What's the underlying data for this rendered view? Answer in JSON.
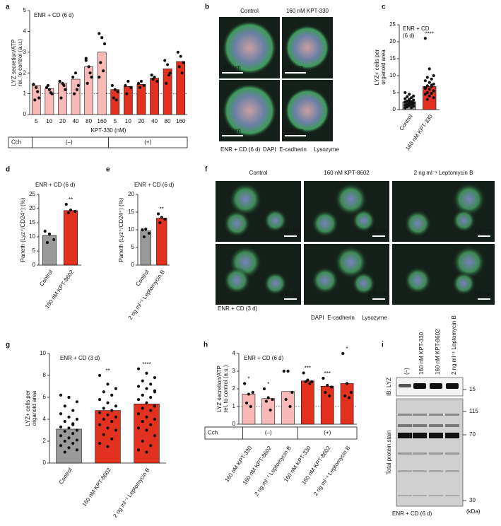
{
  "chart_data": [
    {
      "panel": "a",
      "type": "bar",
      "title": "ENR + CD (6 d)",
      "y_label": [
        "LYZ secretion/ATP",
        "rel. to control (a.u.)"
      ],
      "categories": [
        "5",
        "10",
        "20",
        "40",
        "80",
        "160",
        "5",
        "10",
        "20",
        "40",
        "80",
        "160"
      ],
      "values": [
        1.4,
        1.25,
        1.5,
        1.7,
        2.3,
        3.0,
        1.2,
        1.35,
        1.45,
        1.75,
        2.2,
        2.55
      ],
      "colors": [
        "#f8b9b7",
        "#f8b9b7",
        "#f8b9b7",
        "#f8b9b7",
        "#f8b9b7",
        "#f8b9b7",
        "#e2321f",
        "#e2321f",
        "#e2321f",
        "#e2321f",
        "#e2321f",
        "#e2321f"
      ],
      "points": [
        [
          1.45,
          1.3,
          0.8,
          0.7,
          1.1,
          1.45
        ],
        [
          1.3,
          1.2,
          1.0,
          1.4,
          1.05
        ],
        [
          1.6,
          1.5,
          1.2,
          0.8,
          1.4
        ],
        [
          1.8,
          2.0,
          1.4,
          1.0,
          1.2
        ],
        [
          2.6,
          2.3,
          1.8,
          1.5,
          2.0,
          2.7
        ],
        [
          3.9,
          3.7,
          3.4,
          2.5,
          2.1,
          1.8
        ],
        [
          1.4,
          1.2,
          1.1,
          0.8,
          0.7
        ],
        [
          1.4,
          1.6,
          1.3,
          1.0
        ],
        [
          1.5,
          1.6,
          1.4,
          1.3
        ],
        [
          1.9,
          1.8,
          1.6,
          1.7
        ],
        [
          2.6,
          2.4,
          2.0,
          1.5,
          1.9
        ],
        [
          3.0,
          2.8,
          2.5,
          2.3,
          2.0
        ]
      ],
      "x_label": "KPT-330 (nM)",
      "ylim": [
        0,
        5
      ],
      "yticks": [
        0,
        1,
        2,
        3,
        4,
        5
      ],
      "reference_line": 1,
      "cch_label": "Cch",
      "groups": [
        "(–)",
        "(+)"
      ]
    },
    {
      "panel": "c",
      "type": "bar",
      "title": "ENR + CD",
      "subtitle": "(6 d)",
      "y_label": [
        "LYZ+ cells per",
        "organoid area"
      ],
      "categories": [
        "Control",
        "160 nM KPT-330"
      ],
      "values": [
        2.3,
        6.8
      ],
      "colors": [
        "#9a9a9a",
        "#e2321f"
      ],
      "points": [
        [
          5,
          4.5,
          4,
          3.8,
          3.5,
          3.2,
          3,
          2.8,
          2.5,
          2.3,
          2.2,
          2,
          1.8,
          1.6,
          1.5,
          1.3,
          1.2,
          1,
          0.8,
          0.6,
          0.5,
          2.7,
          1.9
        ],
        [
          21,
          12,
          10,
          9.5,
          9,
          8.5,
          8,
          7.5,
          7,
          6.8,
          6.5,
          6,
          5.5,
          5,
          4.8,
          4.5,
          4,
          3.5,
          3,
          7.2,
          6.2
        ]
      ],
      "annotations": [
        null,
        "****"
      ],
      "ylim": [
        0,
        25
      ],
      "yticks": [
        0,
        5,
        10,
        15,
        20,
        25
      ]
    },
    {
      "panel": "d",
      "type": "bar",
      "title": "ENR + CD (6 d)",
      "y_label": [
        "Paneth (Lyz⁺/CD24⁺) (%)"
      ],
      "categories": [
        "Control",
        "160 nM KPT-8602"
      ],
      "values": [
        10.5,
        19.3
      ],
      "colors": [
        "#9a9a9a",
        "#e2321f"
      ],
      "points": [
        [
          12,
          11,
          9,
          8
        ],
        [
          21.5,
          19.5,
          19,
          18.5
        ]
      ],
      "annotations": [
        null,
        "**"
      ],
      "ylim": [
        0,
        25
      ],
      "yticks": [
        0,
        5,
        10,
        15,
        20,
        25
      ]
    },
    {
      "panel": "e",
      "type": "bar",
      "title": "ENR + CD (6 d)",
      "y_label": [
        "Paneth (Lyz⁺/CD24⁺) (%)"
      ],
      "categories": [
        "Control",
        "2 ng ml⁻¹ Leptomycin B"
      ],
      "values": [
        9.7,
        13.3
      ],
      "colors": [
        "#9a9a9a",
        "#e2321f"
      ],
      "points": [
        [
          10,
          10.2,
          9,
          8
        ],
        [
          14.5,
          13.5,
          13,
          12
        ]
      ],
      "annotations": [
        null,
        "**"
      ],
      "ylim": [
        0,
        20
      ],
      "yticks": [
        0,
        5,
        10,
        15,
        20
      ]
    },
    {
      "panel": "g",
      "type": "bar",
      "title": "ENR + CD (3 d)",
      "y_label": [
        "LYZ+ cells per",
        "organoid area"
      ],
      "categories": [
        "Control",
        "160 nM KPT-8602",
        "2 ng ml⁻¹ Leptomycin B"
      ],
      "values": [
        3.1,
        4.8,
        5.4
      ],
      "colors": [
        "#9a9a9a",
        "#e2321f",
        "#e2321f"
      ],
      "points": [
        [
          6.2,
          6.0,
          5.6,
          5.2,
          4.8,
          4.5,
          4.2,
          4.0,
          3.8,
          3.5,
          3.3,
          3.2,
          3.0,
          2.9,
          2.7,
          2.5,
          2.3,
          2.1,
          2.0,
          1.8,
          1.6,
          1.4,
          1.2,
          1.0,
          3.6
        ],
        [
          8.0,
          7.2,
          6.8,
          6.5,
          6.2,
          5.8,
          5.5,
          5.2,
          5.0,
          4.8,
          4.6,
          4.4,
          4.2,
          4.0,
          3.8,
          3.5,
          3.2,
          3.0,
          2.6,
          2.2,
          1.8,
          1.5
        ],
        [
          8.6,
          8.2,
          7.8,
          7.5,
          7.2,
          7.0,
          6.8,
          6.5,
          6.2,
          6.0,
          5.8,
          5.5,
          5.2,
          5.0,
          4.8,
          4.5,
          4.2,
          4.0,
          3.8,
          3.5,
          3.2,
          3.0,
          2.5,
          2.0,
          1.6,
          1.2,
          1.0,
          6.6
        ]
      ],
      "annotations": [
        null,
        "**",
        "****"
      ],
      "ylim": [
        0,
        10
      ],
      "yticks": [
        0,
        2,
        4,
        6,
        8,
        10
      ]
    },
    {
      "panel": "h",
      "type": "bar",
      "title": "ENR + CD (6 d)",
      "y_label": [
        "LYZ secretion/ATP",
        "rel. to control (a.u.)"
      ],
      "categories": [
        "160 nM KPT-330",
        "160 nM KPT-8602",
        "2 ng ml⁻¹ Leptomycin B",
        "160 nM KPT-330",
        "160 nM KPT-8602",
        "2 ng ml⁻¹ Leptomycin B"
      ],
      "values": [
        1.7,
        1.45,
        1.85,
        2.45,
        2.15,
        2.3
      ],
      "colors": [
        "#f8b9b7",
        "#f8b9b7",
        "#f8b9b7",
        "#e2321f",
        "#e2321f",
        "#e2321f"
      ],
      "points": [
        [
          2.3,
          1.7,
          1.8,
          1.2,
          1.0
        ],
        [
          2.0,
          1.5,
          1.4,
          1.3,
          0.8
        ],
        [
          3.0,
          3.0,
          1.8,
          1.4,
          1.0
        ],
        [
          2.9,
          2.5,
          2.4,
          2.4,
          2.3
        ],
        [
          2.6,
          2.2,
          2.1,
          1.8,
          1.6
        ],
        [
          4.0,
          2.3,
          1.8,
          1.6,
          1.5
        ]
      ],
      "annotations": [
        "*",
        "*",
        null,
        "***",
        "***",
        "*"
      ],
      "ylim": [
        0,
        4
      ],
      "yticks": [
        0,
        1,
        2,
        3,
        4
      ],
      "reference_line": 1,
      "cch_label": "Cch",
      "groups": [
        "(–)",
        "(+)"
      ]
    }
  ],
  "panel_b": {
    "panel": "b",
    "columns": [
      "Control",
      "160 nM KPT-330"
    ],
    "scale_bar": "100 μm",
    "condition": "ENR + CD (6 d)",
    "stains": [
      {
        "name": "DAPI",
        "color": "#4a4ad0"
      },
      {
        "name": "E-cadherin",
        "color": "#2e9a2e"
      },
      {
        "name": "Lysozyme",
        "color": "#e2321f"
      }
    ]
  },
  "panel_f": {
    "panel": "f",
    "columns": [
      "Control",
      "160 nM KPT-8602",
      "2 ng ml⁻¹ Leptomycin B"
    ],
    "scale_bar": "100 μm",
    "condition": "ENR + CD (3 d)",
    "stains": [
      {
        "name": "DAPI",
        "color": "#4a4ad0"
      },
      {
        "name": "E-cadherin",
        "color": "#2e9a2e"
      },
      {
        "name": "Lysozyme",
        "color": "#e2321f"
      }
    ]
  },
  "panel_i": {
    "panel": "i",
    "lanes": [
      "(–)",
      "160 nM KPT-330",
      "160 nM KPT-8602",
      "2 ng ml⁻¹ Leptomycin B"
    ],
    "blots": [
      "IB: LYZ",
      "Total protein stain"
    ],
    "markers": [
      "15",
      "115",
      "70",
      "30"
    ],
    "marker_unit": "(kDa)",
    "condition": "ENR + CD (6 d)"
  }
}
